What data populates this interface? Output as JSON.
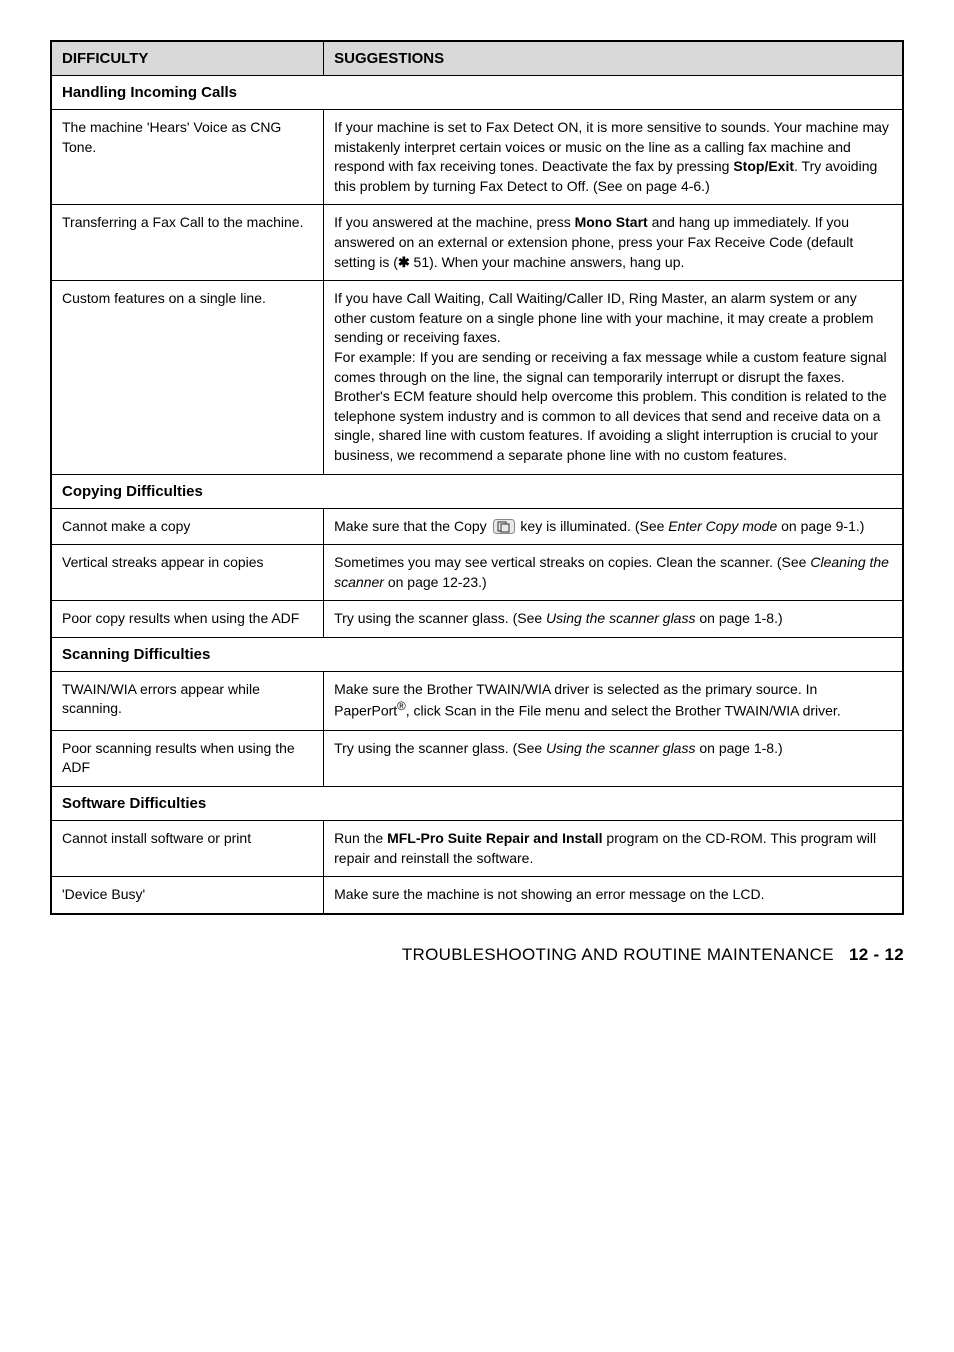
{
  "table": {
    "header": {
      "col1": "DIFFICULTY",
      "col2": "SUGGESTIONS"
    },
    "sections": [
      {
        "title": "Handling Incoming Calls",
        "rows": [
          {
            "difficulty": "The machine 'Hears' Voice as CNG Tone.",
            "suggestion": "If your machine is set to Fax Detect ON, it is more sensitive to sounds. Your machine may mistakenly interpret certain voices or music on the line as a calling fax machine and respond with fax receiving tones. Deactivate the fax by pressing <span class=\"bold\">Stop/Exit</span>. Try avoiding this problem by turning Fax Detect to Off. (See on page 4-6.)"
          },
          {
            "difficulty": "Transferring a Fax Call to the machine.",
            "suggestion": "If you answered at the machine, press <span class=\"bold\">Mono Start</span> and hang up immediately. If you answered on an external or extension phone, press your Fax Receive Code (default setting is (<b>✱</b> 51). When your machine answers, hang up."
          },
          {
            "difficulty": "Custom features on a single line.",
            "suggestion": "If you have Call Waiting, Call Waiting/Caller ID, Ring Master, an alarm system or any other custom feature on a single phone line with your machine, it may create a problem sending or receiving faxes.<br>For example: If you are sending or receiving a fax message while a custom feature signal comes through on the line, the signal can temporarily interrupt or disrupt the faxes. Brother's ECM feature should help overcome this problem. This condition is related to the telephone system industry and is common to all devices that send and receive data on a single, shared line with custom features. If avoiding a slight interruption is crucial to your business, we recommend a separate phone line with no custom features."
          }
        ]
      },
      {
        "title": "Copying Difficulties",
        "rows": [
          {
            "difficulty": "Cannot make a copy",
            "suggestion_prefix": "Make sure that the Copy ",
            "suggestion_has_icon": true,
            "suggestion_suffix": " key is illuminated. (See <span class=\"italic\">Enter Copy mode</span> on page 9-1.)"
          },
          {
            "difficulty": "Vertical streaks appear in copies",
            "suggestion": "Sometimes you may see vertical streaks on copies. Clean the scanner. (See <span class=\"italic\">Cleaning the scanner</span> on page 12-23.)"
          },
          {
            "difficulty": "Poor copy results when using the ADF",
            "suggestion": "Try using the scanner glass. (See <span class=\"italic\">Using the scanner glass</span> on page 1-8.)"
          }
        ]
      },
      {
        "title": "Scanning Difficulties",
        "rows": [
          {
            "difficulty": "TWAIN/WIA errors appear while scanning.",
            "suggestion": "Make sure the Brother TWAIN/WIA driver is selected as the primary source. In PaperPort<sup>®</sup>, click Scan in the File menu and select the Brother TWAIN/WIA driver."
          },
          {
            "difficulty": "Poor scanning results when using the ADF",
            "suggestion": "Try using the scanner glass. (See <span class=\"italic\">Using the scanner glass</span> on page 1-8.)"
          }
        ]
      },
      {
        "title": "Software Difficulties",
        "rows": [
          {
            "difficulty": "Cannot install software or print",
            "suggestion": "Run the <span class=\"bold\">MFL-Pro Suite Repair and Install</span> program on the CD-ROM. This program will repair and reinstall the software."
          },
          {
            "difficulty": "'Device Busy'",
            "suggestion": "Make sure the machine is not showing an error message on the LCD."
          }
        ]
      }
    ]
  },
  "footer": {
    "text": "TROUBLESHOOTING AND ROUTINE MAINTENANCE",
    "page": "12 - 12"
  },
  "colors": {
    "header_bg": "#d9d9d9",
    "border": "#000000",
    "text": "#000000",
    "background": "#ffffff"
  }
}
